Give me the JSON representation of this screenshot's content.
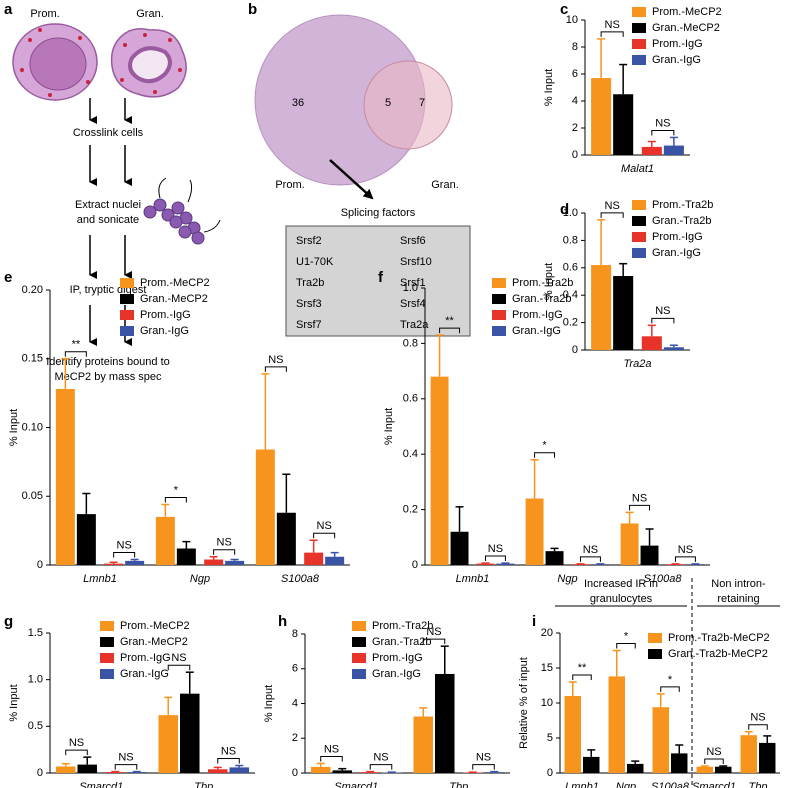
{
  "panel_labels": [
    "a",
    "b",
    "c",
    "d",
    "e",
    "f",
    "g",
    "h",
    "i"
  ],
  "workflow": {
    "cell_labels": [
      "Prom.",
      "Gran."
    ],
    "steps": [
      [
        "Crosslink cells"
      ],
      [
        "Extract nuclei",
        "and sonicate"
      ],
      [
        "IP, tryptic digest"
      ],
      [
        "Identify proteins bound to",
        "MeCP2 by mass spec"
      ]
    ]
  },
  "venn": {
    "left_label": "Prom.",
    "right_label": "Gran.",
    "left_only": 36,
    "overlap": 5,
    "right_only": 7,
    "box_title": "Splicing factors",
    "factors": [
      [
        "Srsf2",
        "Srsf6"
      ],
      [
        "U1-70K",
        "Srsf10"
      ],
      [
        "Tra2b",
        "Srsf1"
      ],
      [
        "Srsf3",
        "Srsf4"
      ],
      [
        "Srsf7",
        "Tra2a"
      ]
    ]
  },
  "chart_data": [
    {
      "type": "bar",
      "ylabel": "% Input",
      "categories": [
        "Malat1"
      ],
      "ylim": [
        0,
        10
      ],
      "yticks": [
        0,
        2,
        4,
        6,
        8,
        10
      ],
      "series": [
        {
          "name": "Prom.-MeCP2",
          "color": "#f7941d",
          "values": [
            5.7
          ],
          "errors": [
            2.9
          ]
        },
        {
          "name": "Gran.-MeCP2",
          "color": "#000000",
          "values": [
            4.5
          ],
          "errors": [
            2.2
          ]
        },
        {
          "name": "Prom.-IgG",
          "color": "#e8332a",
          "values": [
            0.6
          ],
          "errors": [
            0.4
          ]
        },
        {
          "name": "Gran.-IgG",
          "color": "#3a53a4",
          "values": [
            0.7
          ],
          "errors": [
            0.6
          ]
        }
      ],
      "annotations": [
        "NS",
        "NS"
      ]
    },
    {
      "type": "bar",
      "ylabel": "% Input",
      "categories": [
        "Tra2a"
      ],
      "ylim": [
        0,
        1
      ],
      "yticks": [
        0,
        0.2,
        0.4,
        0.6,
        0.8,
        {
          "value": 1,
          "label": "1.0"
        }
      ],
      "series": [
        {
          "name": "Prom.-Tra2b",
          "color": "#f7941d",
          "values": [
            0.62
          ],
          "errors": [
            0.33
          ]
        },
        {
          "name": "Gran.-Tra2b",
          "color": "#000000",
          "values": [
            0.54
          ],
          "errors": [
            0.09
          ]
        },
        {
          "name": "Prom.-IgG",
          "color": "#e8332a",
          "values": [
            0.1
          ],
          "errors": [
            0.08
          ]
        },
        {
          "name": "Gran.-IgG",
          "color": "#3a53a4",
          "values": [
            0.02
          ],
          "errors": [
            0.015
          ]
        }
      ],
      "annotations": [
        "NS",
        "NS"
      ]
    },
    {
      "type": "bar",
      "ylabel": "% Input",
      "categories": [
        "Lmnb1",
        "Ngp",
        "S100a8"
      ],
      "ylim": [
        0,
        0.2
      ],
      "yticks": [
        0,
        0.05,
        {
          "value": 0.1,
          "label": "0.10"
        },
        0.15,
        {
          "value": 0.2,
          "label": "0.20"
        }
      ],
      "series": [
        {
          "name": "Prom.-MeCP2",
          "color": "#f7941d",
          "values": [
            0.128,
            0.035,
            0.084
          ],
          "errors": [
            0.022,
            0.009,
            0.055
          ]
        },
        {
          "name": "Gran.-MeCP2",
          "color": "#000000",
          "values": [
            0.037,
            0.012,
            0.038
          ],
          "errors": [
            0.015,
            0.005,
            0.028
          ]
        },
        {
          "name": "Prom.-IgG",
          "color": "#e8332a",
          "values": [
            0.001,
            0.004,
            0.009
          ],
          "errors": [
            0.001,
            0.002,
            0.009
          ]
        },
        {
          "name": "Gran.-IgG",
          "color": "#3a53a4",
          "values": [
            0.003,
            0.003,
            0.006
          ],
          "errors": [
            0.001,
            0.001,
            0.003
          ]
        }
      ],
      "annotations": [
        "**",
        "NS",
        "*",
        "NS",
        "NS",
        "NS"
      ]
    },
    {
      "type": "bar",
      "ylabel": "% Input",
      "categories": [
        "Lmnb1",
        "Ngp",
        "S100a8"
      ],
      "ylim": [
        0,
        1
      ],
      "yticks": [
        0,
        0.2,
        0.4,
        0.6,
        0.8,
        {
          "value": 1,
          "label": "1.0"
        }
      ],
      "series": [
        {
          "name": "Prom.-Tra2b",
          "color": "#f7941d",
          "values": [
            0.68,
            0.24,
            0.15
          ],
          "errors": [
            0.15,
            0.14,
            0.04
          ]
        },
        {
          "name": "Gran.-Tra2b",
          "color": "#000000",
          "values": [
            0.12,
            0.05,
            0.07
          ],
          "errors": [
            0.09,
            0.01,
            0.06
          ]
        },
        {
          "name": "Prom.-IgG",
          "color": "#e8332a",
          "values": [
            0.005,
            0.003,
            0.003
          ],
          "errors": [
            0.002,
            0.001,
            0.001
          ]
        },
        {
          "name": "Gran.-IgG",
          "color": "#3a53a4",
          "values": [
            0.005,
            0.003,
            0.003
          ],
          "errors": [
            0.002,
            0.001,
            0.001
          ]
        }
      ],
      "annotations": [
        "**",
        "NS",
        "*",
        "NS",
        "NS",
        "NS"
      ]
    },
    {
      "type": "bar",
      "ylabel": "% Input",
      "categories": [
        "Smarcd1",
        "Tbp"
      ],
      "ylim": [
        0,
        1.5
      ],
      "yticks": [
        0,
        0.5,
        {
          "value": 1,
          "label": "1.0"
        },
        1.5
      ],
      "series": [
        {
          "name": "Prom.-MeCP2",
          "color": "#f7941d",
          "values": [
            0.07,
            0.62
          ],
          "errors": [
            0.03,
            0.19
          ]
        },
        {
          "name": "Gran.-MeCP2",
          "color": "#000000",
          "values": [
            0.09,
            0.85
          ],
          "errors": [
            0.08,
            0.23
          ]
        },
        {
          "name": "Prom.-IgG",
          "color": "#e8332a",
          "values": [
            0.01,
            0.04
          ],
          "errors": [
            0.005,
            0.02
          ]
        },
        {
          "name": "Gran.-IgG",
          "color": "#3a53a4",
          "values": [
            0.01,
            0.06
          ],
          "errors": [
            0.005,
            0.02
          ]
        }
      ],
      "annotations": [
        "NS",
        "NS",
        "NS",
        "NS"
      ]
    },
    {
      "type": "bar",
      "ylabel": "% Input",
      "categories": [
        "Smarcd1",
        "Tbp"
      ],
      "ylim": [
        0,
        8
      ],
      "yticks": [
        0,
        2,
        4,
        6,
        8
      ],
      "series": [
        {
          "name": "Prom.-Tra2b",
          "color": "#f7941d",
          "values": [
            0.35,
            3.25
          ],
          "errors": [
            0.2,
            0.5
          ]
        },
        {
          "name": "Gran.-Tra2b",
          "color": "#000000",
          "values": [
            0.15,
            5.7
          ],
          "errors": [
            0.1,
            1.6
          ]
        },
        {
          "name": "Prom.-IgG",
          "color": "#e8332a",
          "values": [
            0.05,
            0.03
          ],
          "errors": [
            0.03,
            0.02
          ]
        },
        {
          "name": "Gran.-IgG",
          "color": "#3a53a4",
          "values": [
            0.03,
            0.05
          ],
          "errors": [
            0.02,
            0.03
          ]
        }
      ],
      "annotations": [
        "NS",
        "NS",
        "NS",
        "NS"
      ]
    },
    {
      "type": "bar",
      "ylabel": "Relative % of input",
      "categories": [
        "Lmnb1",
        "Ngp",
        "S100a8",
        "Smarcd1",
        "Tbp"
      ],
      "ylim": [
        0,
        20
      ],
      "yticks": [
        0,
        5,
        10,
        15,
        20
      ],
      "series": [
        {
          "name": "Prom.-Tra2b-MeCP2",
          "color": "#f7941d",
          "values": [
            11,
            13.8,
            9.4,
            0.9,
            5.4
          ],
          "errors": [
            2,
            3.7,
            1.9,
            0.1,
            0.5
          ]
        },
        {
          "name": "Gran.-Tra2b-MeCP2",
          "color": "#000000",
          "values": [
            2.3,
            1.3,
            2.8,
            0.9,
            4.3
          ],
          "errors": [
            1,
            0.4,
            1.2,
            0.1,
            1
          ]
        }
      ],
      "annotations": [
        "**",
        "*",
        "*",
        "NS",
        "NS"
      ],
      "group_labels": [
        [
          "Increased IR in",
          "granulocytes"
        ],
        [
          "Non intron-",
          "retaining"
        ]
      ]
    }
  ]
}
